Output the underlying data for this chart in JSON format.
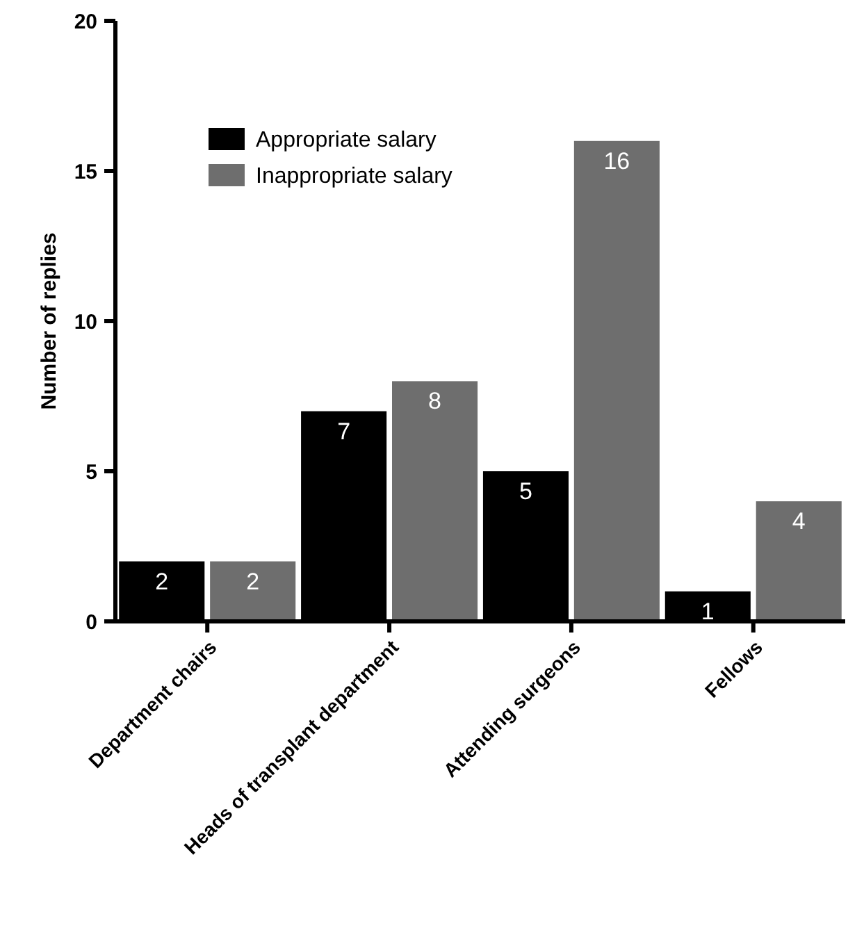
{
  "chart_data": {
    "type": "bar",
    "ylabel": "Number of replies",
    "categories": [
      "Department chairs",
      "Heads of transplant department",
      "Attending surgeons",
      "Fellows"
    ],
    "series": [
      {
        "name": "Appropriate salary",
        "color": "#000000",
        "values": [
          2,
          7,
          5,
          1
        ]
      },
      {
        "name": "Inappropriate salary",
        "color": "#6e6e6e",
        "values": [
          2,
          8,
          16,
          4
        ]
      }
    ],
    "ylim": [
      0,
      20
    ],
    "yticks": [
      0,
      5,
      10,
      15,
      20
    ],
    "data_labels": true,
    "legend": "top left",
    "grid": false
  }
}
